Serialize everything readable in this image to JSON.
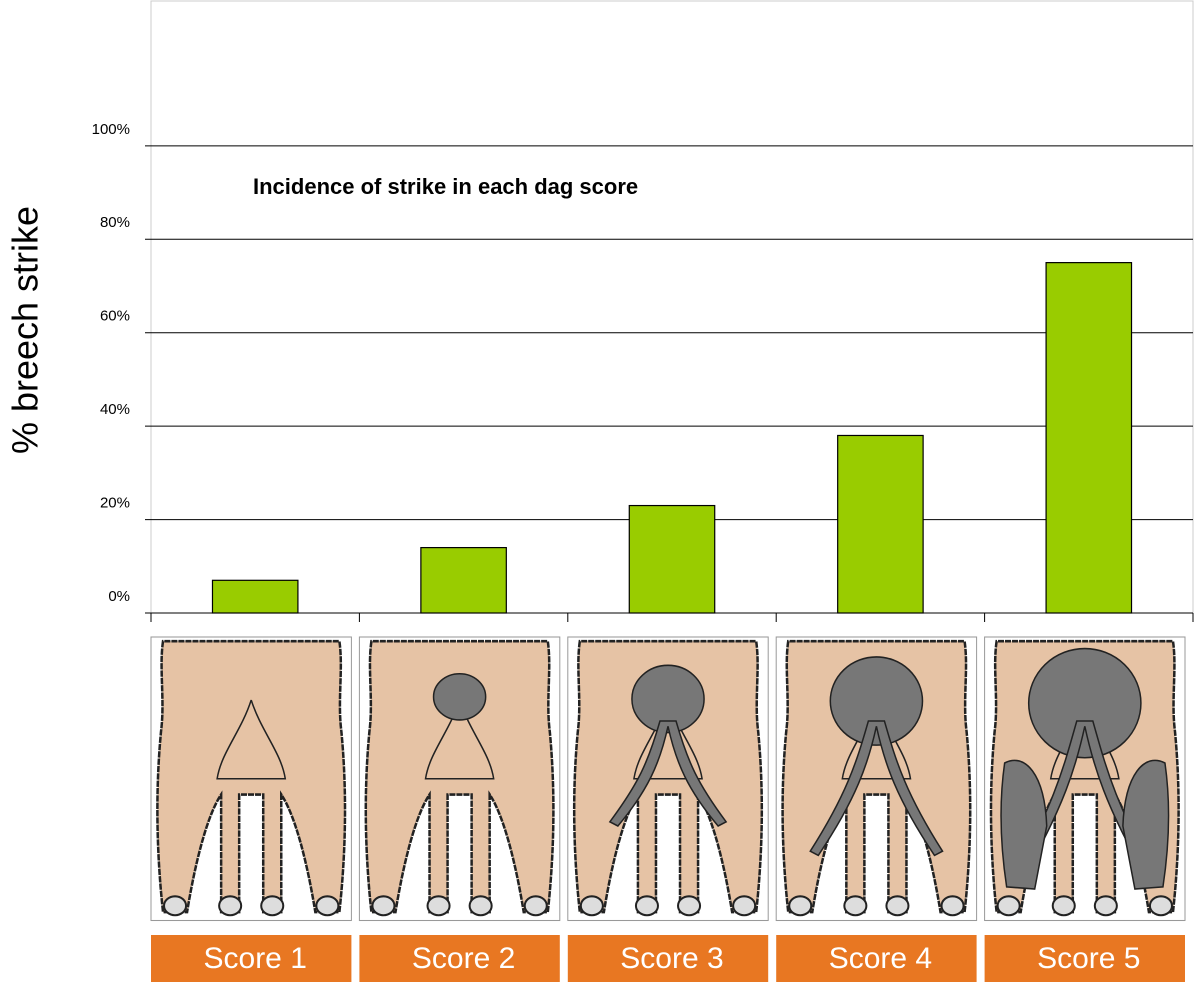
{
  "chart_data": {
    "type": "bar",
    "title": "Incidence of strike in each dag score",
    "ylabel": "% breech strike",
    "categories": [
      "Score 1",
      "Score 2",
      "Score 3",
      "Score 4",
      "Score 5"
    ],
    "values": [
      7,
      14,
      23,
      38,
      75
    ],
    "color": "#99cc00",
    "ylim": [
      0,
      131
    ],
    "yticks": [
      {
        "value": 0,
        "label": "0%"
      },
      {
        "value": 20,
        "label": "20%"
      },
      {
        "value": 40,
        "label": "40%"
      },
      {
        "value": 60,
        "label": "60%"
      },
      {
        "value": 80,
        "label": "80%"
      },
      {
        "value": 100,
        "label": "100%"
      }
    ],
    "grid": true
  }
}
